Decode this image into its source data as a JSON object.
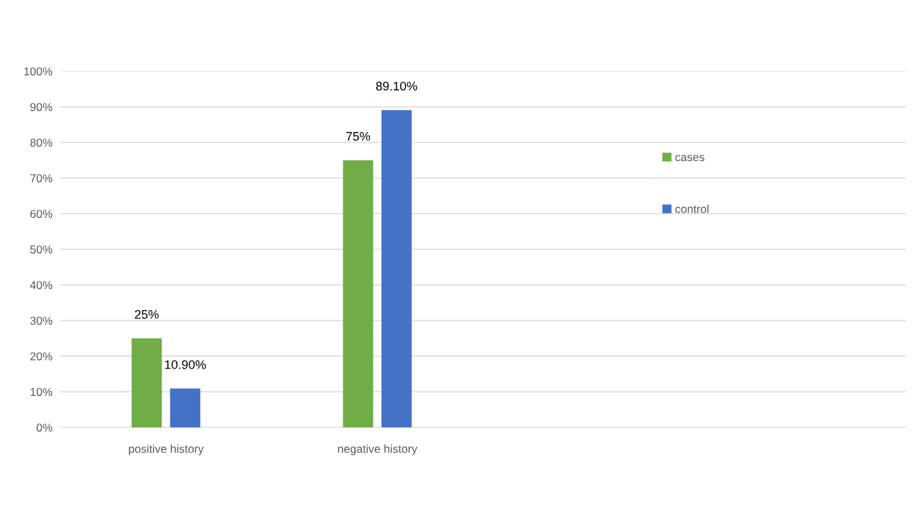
{
  "chart_data": {
    "type": "bar",
    "categories": [
      "positive history",
      "negative history",
      null,
      null
    ],
    "series": [
      {
        "name": "cases",
        "color": "#70ad47",
        "values": [
          25,
          75,
          null,
          null
        ],
        "value_labels": [
          "25%",
          "75%",
          null,
          null
        ]
      },
      {
        "name": "control",
        "color": "#4472c4",
        "values": [
          10.9,
          89.1,
          null,
          null
        ],
        "value_labels": [
          "10.90%",
          "89.10%",
          null,
          null
        ]
      }
    ],
    "ylim": [
      0,
      100
    ],
    "yticks": [
      {
        "value": 0,
        "label": "0%"
      },
      {
        "value": 10,
        "label": "10%"
      },
      {
        "value": 20,
        "label": "20%"
      },
      {
        "value": 30,
        "label": "30%"
      },
      {
        "value": 40,
        "label": "40%"
      },
      {
        "value": 50,
        "label": "50%"
      },
      {
        "value": 60,
        "label": "60%"
      },
      {
        "value": 70,
        "label": "70%"
      },
      {
        "value": 80,
        "label": "80%"
      },
      {
        "value": 90,
        "label": "90%"
      },
      {
        "value": 100,
        "label": "100%"
      }
    ],
    "grid": "y",
    "legend": "right"
  }
}
